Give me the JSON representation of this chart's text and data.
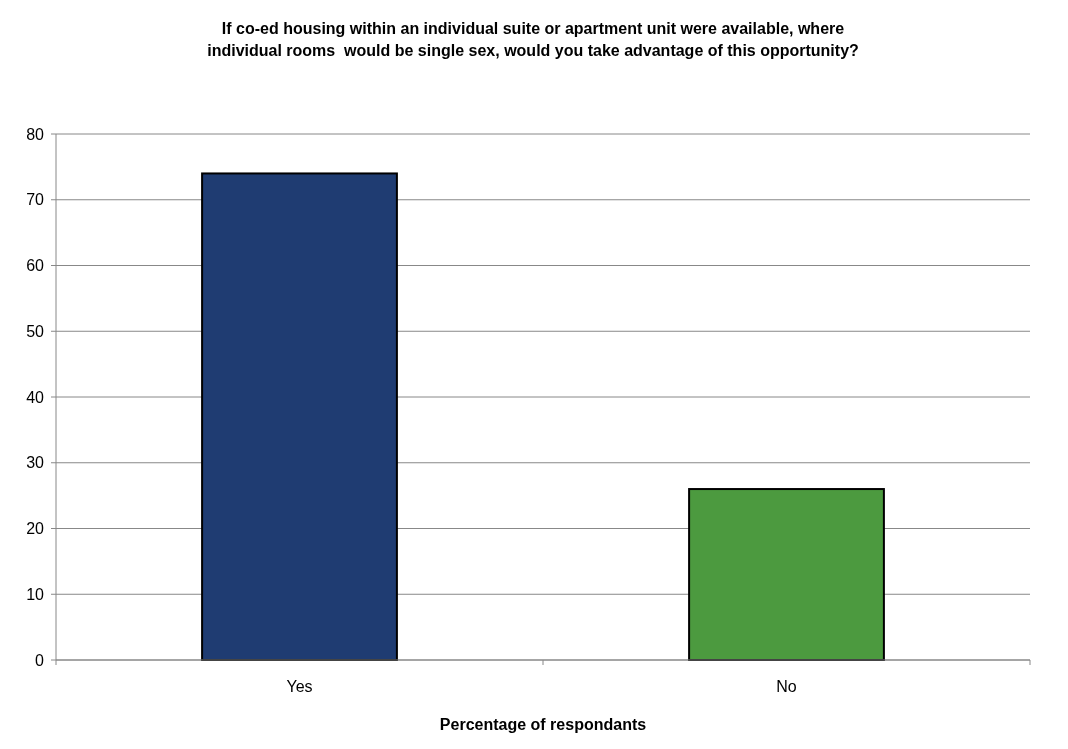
{
  "chart_data": {
    "type": "bar",
    "title": "If co-ed housing within an individual suite or apartment unit were available, where\nindividual rooms  would be single sex, would you take advantage of this opportunity?",
    "xlabel": "Percentage of respondants",
    "categories": [
      "Yes",
      "No"
    ],
    "values": [
      74,
      26
    ],
    "colors": [
      "#1f3c72",
      "#4c9a3f"
    ],
    "ylim": [
      0,
      80
    ],
    "yticks": [
      0,
      10,
      20,
      30,
      40,
      50,
      60,
      70,
      80
    ],
    "grid": "y"
  }
}
